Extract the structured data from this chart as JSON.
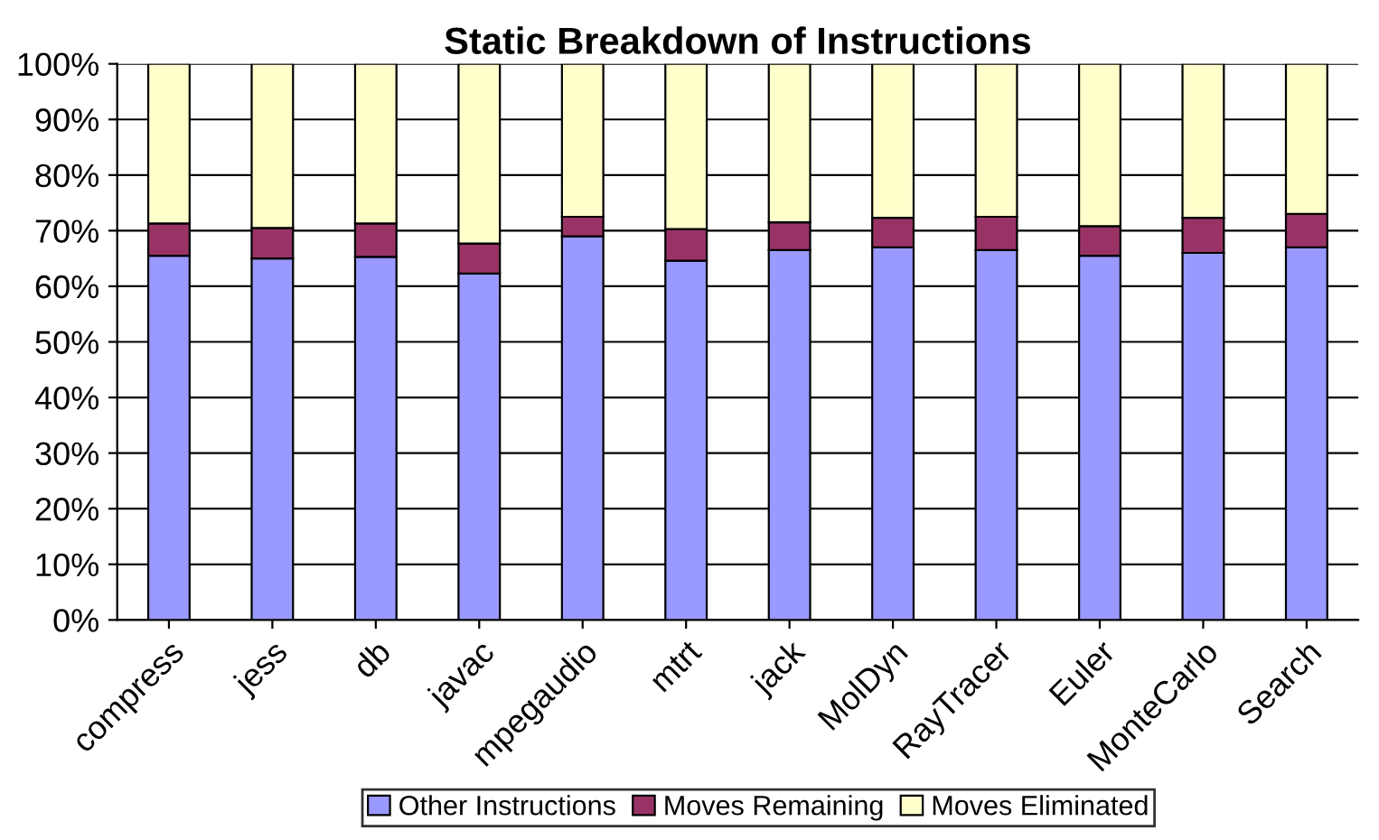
{
  "chart_data": {
    "type": "bar",
    "stacked": true,
    "title": "Static Breakdown of Instructions",
    "categories": [
      "compress",
      "jess",
      "db",
      "javac",
      "mpegaudio",
      "mtrt",
      "jack",
      "MolDyn",
      "RayTracer",
      "Euler",
      "MonteCarlo",
      "Search"
    ],
    "series": [
      {
        "name": "Other Instructions",
        "color": "#9999ff",
        "values": [
          65.5,
          65,
          65.3,
          62.3,
          69,
          64.6,
          66.5,
          67,
          66.5,
          65.5,
          66,
          67
        ]
      },
      {
        "name": "Moves Remaining",
        "color": "#993366",
        "values": [
          5.8,
          5.5,
          6,
          5.4,
          3.5,
          5.7,
          5,
          5.3,
          6,
          5.3,
          6.3,
          6
        ]
      },
      {
        "name": "Moves Eliminated",
        "color": "#ffffcc",
        "values": [
          28.7,
          29.5,
          28.7,
          32.3,
          27.5,
          29.7,
          28.5,
          27.7,
          27.5,
          29.2,
          27.7,
          27
        ]
      }
    ],
    "ylim": [
      0,
      100
    ],
    "yticks": [
      {
        "value": 0,
        "label": "0%"
      },
      {
        "value": 10,
        "label": "10%"
      },
      {
        "value": 20,
        "label": "20%"
      },
      {
        "value": 30,
        "label": "30%"
      },
      {
        "value": 40,
        "label": "40%"
      },
      {
        "value": 50,
        "label": "50%"
      },
      {
        "value": 60,
        "label": "60%"
      },
      {
        "value": 70,
        "label": "70%"
      },
      {
        "value": 80,
        "label": "80%"
      },
      {
        "value": 90,
        "label": "90%"
      },
      {
        "value": 100,
        "label": "100%"
      }
    ],
    "grid": "y",
    "legend": "bottom"
  }
}
